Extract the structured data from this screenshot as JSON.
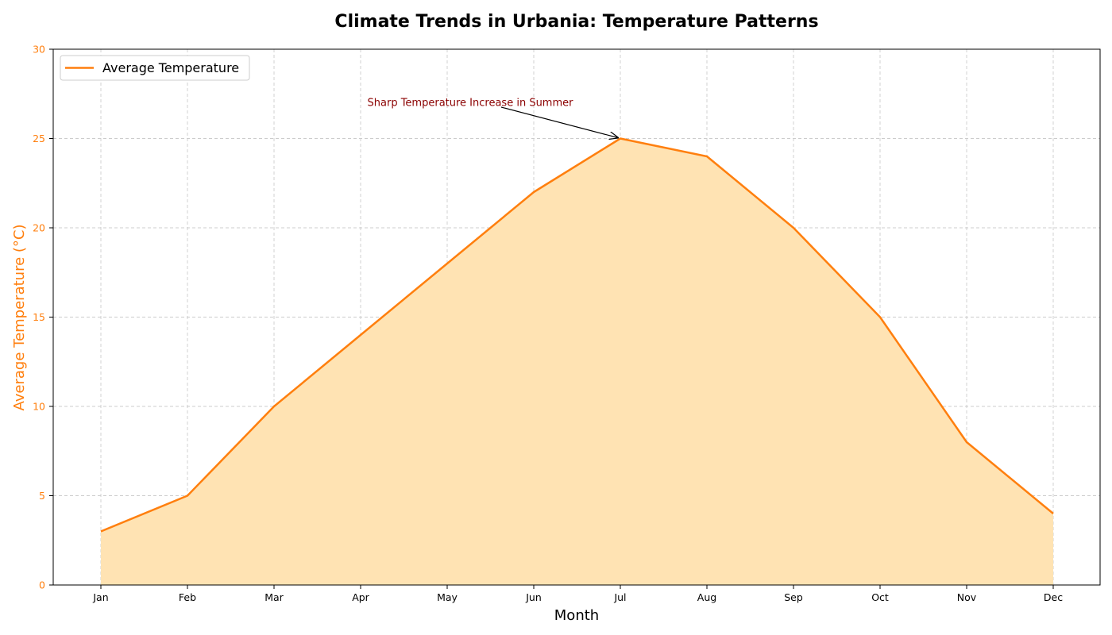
{
  "colors": {
    "line": "#ff7f0e",
    "fill": "#ffe3b3",
    "annotation": "#8b0000",
    "grid": "#cccccc",
    "axis": "#000000",
    "y_axis_text": "#ff7f0e"
  },
  "chart_data": {
    "type": "area",
    "title": "Climate Trends in Urbania: Temperature Patterns",
    "xlabel": "Month",
    "ylabel": "Average Temperature (°C)",
    "categories": [
      "Jan",
      "Feb",
      "Mar",
      "Apr",
      "May",
      "Jun",
      "Jul",
      "Aug",
      "Sep",
      "Oct",
      "Nov",
      "Dec"
    ],
    "series": [
      {
        "name": "Average Temperature",
        "values": [
          3,
          5,
          10,
          14,
          18,
          22,
          25,
          24,
          20,
          15,
          8,
          4
        ]
      }
    ],
    "ylim": [
      0,
      30
    ],
    "yticks": [
      0,
      5,
      10,
      15,
      20,
      25,
      30
    ],
    "grid": true,
    "grid_style": "dashed",
    "legend_position": "top-left",
    "annotations": [
      {
        "text": "Sharp Temperature Increase in Summer",
        "target_category": "Jul",
        "target_value": 25,
        "text_category": "Apr",
        "text_value": 27
      }
    ]
  }
}
